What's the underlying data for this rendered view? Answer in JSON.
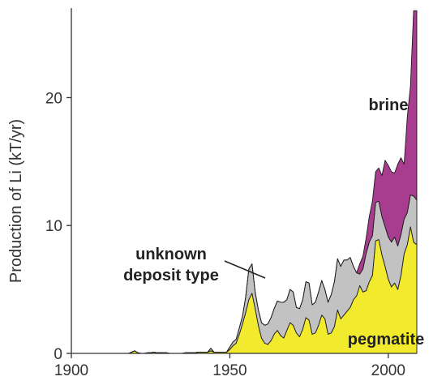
{
  "chart_data": {
    "type": "area",
    "stacked": true,
    "title": "",
    "xlabel": "",
    "ylabel": "Production of Li (kT/yr)",
    "xlim": [
      1900,
      2009
    ],
    "ylim": [
      0,
      27
    ],
    "x_ticks": [
      "1900",
      "1950",
      "2000"
    ],
    "x_tick_values": [
      1900,
      1950,
      2000
    ],
    "y_ticks": [
      "0",
      "10",
      "20"
    ],
    "y_tick_values": [
      0,
      10,
      20
    ],
    "grid": false,
    "legend": "none",
    "x": [
      1900,
      1915,
      1918,
      1919,
      1920,
      1921,
      1922,
      1923,
      1924,
      1925,
      1926,
      1927,
      1928,
      1929,
      1930,
      1931,
      1932,
      1933,
      1934,
      1935,
      1936,
      1937,
      1938,
      1939,
      1940,
      1941,
      1942,
      1943,
      1944,
      1945,
      1946,
      1947,
      1948,
      1949,
      1950,
      1951,
      1952,
      1953,
      1954,
      1955,
      1956,
      1957,
      1958,
      1959,
      1960,
      1961,
      1962,
      1963,
      1964,
      1965,
      1966,
      1967,
      1968,
      1969,
      1970,
      1971,
      1972,
      1973,
      1974,
      1975,
      1976,
      1977,
      1978,
      1979,
      1980,
      1981,
      1982,
      1983,
      1984,
      1985,
      1986,
      1987,
      1988,
      1989,
      1990,
      1991,
      1992,
      1993,
      1994,
      1995,
      1996,
      1997,
      1998,
      1999,
      2000,
      2001,
      2002,
      2003,
      2004,
      2005,
      2006,
      2007,
      2008,
      2009
    ],
    "series": [
      {
        "name": "pegmatite",
        "color": "#f2ea2c",
        "label": "pegmatite",
        "values": [
          0,
          0,
          0,
          0.1,
          0.2,
          0.05,
          0,
          0,
          0.05,
          0.05,
          0.1,
          0.05,
          0.05,
          0.05,
          0.05,
          0,
          0,
          0,
          0,
          0,
          0.05,
          0.05,
          0.05,
          0.05,
          0.1,
          0.1,
          0.1,
          0.1,
          0.2,
          0.1,
          0.1,
          0.1,
          0.1,
          0.1,
          0.3,
          0.6,
          0.8,
          1.5,
          2.3,
          3.2,
          4.2,
          4.7,
          3.5,
          2.2,
          1.2,
          0.8,
          0.7,
          1.0,
          1.5,
          1.8,
          1.4,
          1.2,
          1.8,
          2.4,
          2.2,
          1.6,
          1.3,
          1.9,
          2.8,
          2.6,
          1.5,
          1.6,
          2.2,
          3.0,
          2.7,
          1.5,
          1.6,
          2.1,
          3.4,
          2.7,
          3.0,
          3.3,
          3.6,
          4.2,
          4.5,
          5.3,
          4.8,
          4.9,
          5.6,
          6.1,
          8.8,
          8.9,
          7.7,
          6.8,
          5.8,
          5.2,
          5.5,
          5.0,
          6.1,
          7.8,
          8.5,
          9.9,
          8.7,
          8.5
        ]
      },
      {
        "name": "unknown deposit type",
        "color": "#c2c2c2",
        "label": "unknown\ndeposit type",
        "values": [
          0,
          0,
          0,
          0,
          0,
          0,
          0,
          0,
          0,
          0,
          0,
          0,
          0,
          0,
          0,
          0,
          0,
          0,
          0,
          0,
          0,
          0,
          0,
          0,
          0,
          0,
          0,
          0,
          0.2,
          0,
          0,
          0,
          0,
          0,
          0.2,
          0.3,
          0.3,
          0.5,
          0.6,
          1.2,
          2.4,
          2.3,
          1.3,
          1.2,
          1.2,
          1.4,
          1.6,
          1.8,
          2.0,
          2.3,
          2.6,
          2.8,
          2.4,
          2.6,
          2.6,
          2.0,
          2.2,
          2.3,
          2.8,
          2.9,
          2.3,
          2.4,
          2.6,
          2.7,
          2.3,
          2.5,
          3.0,
          3.5,
          4.0,
          4.1,
          4.3,
          4.0,
          3.9,
          2.6,
          1.8,
          0.9,
          1.8,
          2.9,
          3.1,
          3.1,
          3.0,
          3.0,
          3.0,
          3.1,
          3.3,
          3.5,
          3.6,
          3.4,
          3.2,
          2.7,
          2.5,
          2.5,
          3.6,
          3.5
        ]
      },
      {
        "name": "brine",
        "color": "#a83c8f",
        "label": "brine",
        "values": [
          0,
          0,
          0,
          0,
          0,
          0,
          0,
          0,
          0,
          0,
          0,
          0,
          0,
          0,
          0,
          0,
          0,
          0,
          0,
          0,
          0,
          0,
          0,
          0,
          0,
          0,
          0,
          0,
          0,
          0,
          0,
          0,
          0,
          0,
          0,
          0,
          0,
          0,
          0,
          0,
          0,
          0,
          0,
          0,
          0,
          0,
          0,
          0,
          0,
          0,
          0,
          0,
          0,
          0,
          0,
          0,
          0,
          0,
          0,
          0,
          0,
          0,
          0,
          0,
          0,
          0,
          0,
          0,
          0,
          0,
          0,
          0,
          0,
          0,
          0,
          0.8,
          1.0,
          1.2,
          2.0,
          2.7,
          2.4,
          2.6,
          3.2,
          5.2,
          5.6,
          5.5,
          5.0,
          6.4,
          6.0,
          4.3,
          7.5,
          8.5,
          14.5,
          14.8
        ]
      }
    ],
    "annotations": [
      {
        "text": "brine",
        "series": "brine"
      },
      {
        "text": "unknown\ndeposit type",
        "series": "unknown deposit type",
        "leader_line": true
      },
      {
        "text": "pegmatite",
        "series": "pegmatite"
      }
    ]
  }
}
